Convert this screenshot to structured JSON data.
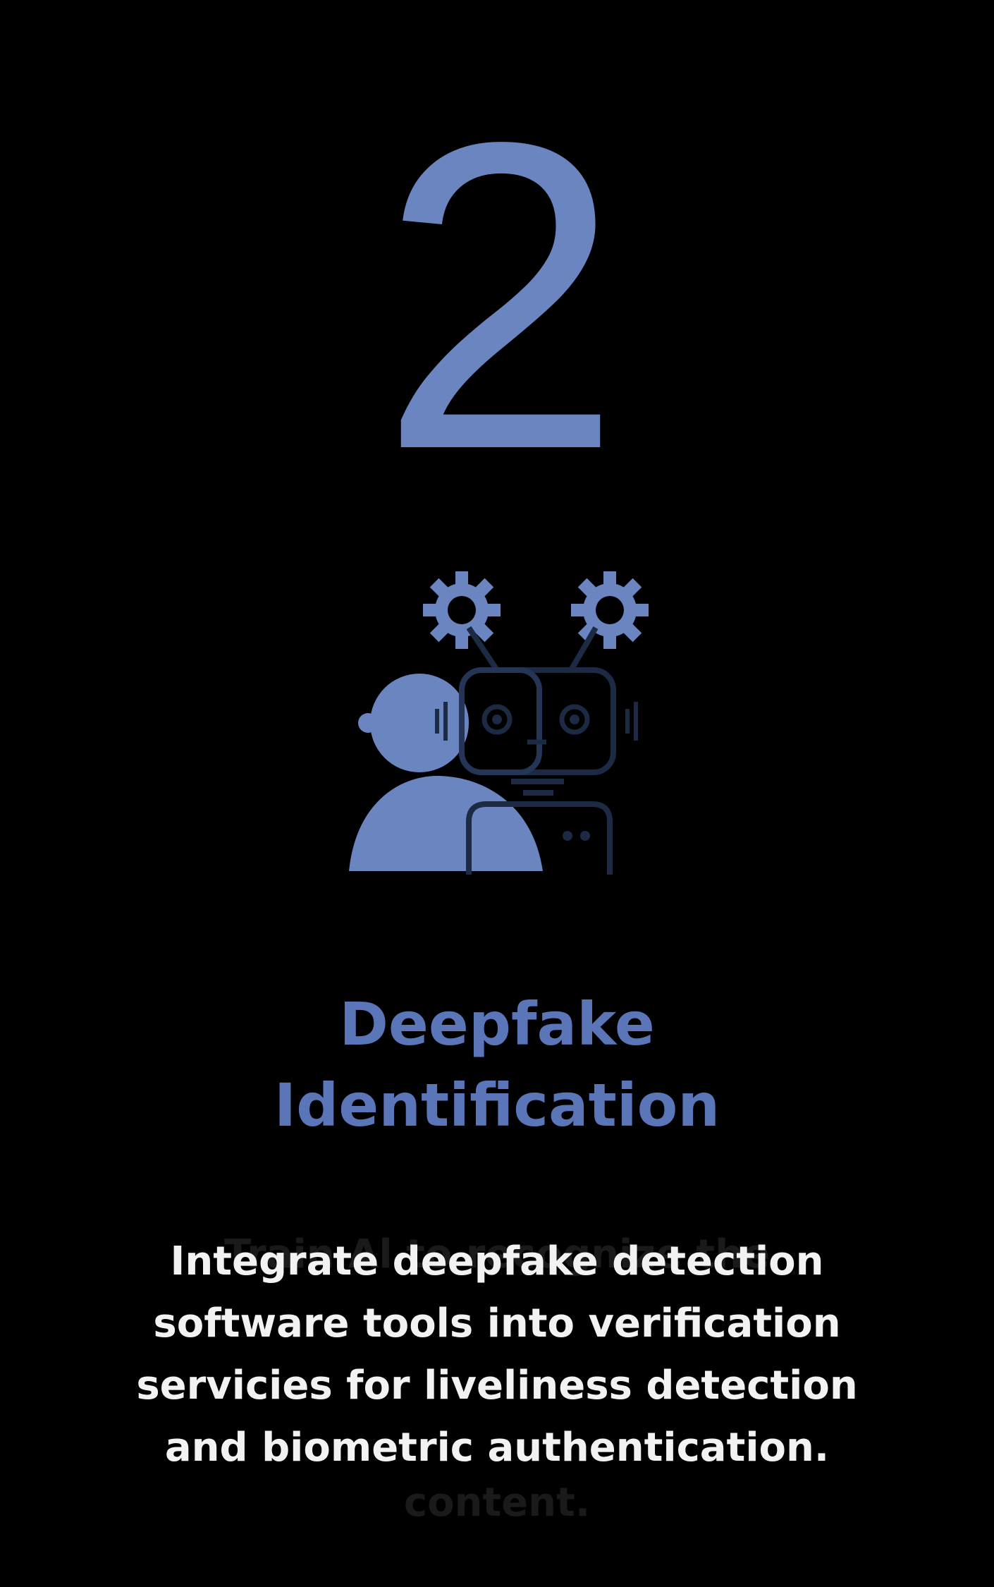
{
  "card": {
    "step_number": "2",
    "icon": "human-robot-deepfake-icon",
    "title_lines": [
      "Deepfake",
      "Identification"
    ],
    "description_lines": [
      "Integrate deepfake detection",
      "software tools into verification",
      "servicies for liveliness detection",
      "and biometric authentication."
    ],
    "ghost_lines": [
      "Train Al to recognize the",
      "",
      "",
      "",
      "content."
    ]
  },
  "colors": {
    "background": "#000000",
    "accent": "#6a85c0",
    "title": "#5a76b8",
    "icon_dark": "#1c2a44",
    "description": "#f2f2f2"
  }
}
